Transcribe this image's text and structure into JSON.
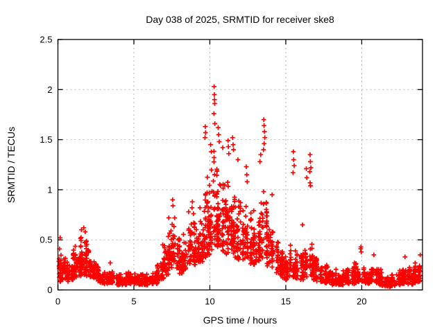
{
  "figure": {
    "background": "#ffffff"
  },
  "chart_data": {
    "type": "scatter",
    "title": "Day 038 of 2025, SRMTID for receiver ske8",
    "xlabel": "GPS time / hours",
    "ylabel": "SRMTID / TECUs",
    "xlim": [
      0,
      24
    ],
    "ylim": [
      0,
      2.5
    ],
    "xticks": [
      0,
      5,
      10,
      15,
      20
    ],
    "yticks": [
      0,
      0.5,
      1,
      1.5,
      2,
      2.5
    ],
    "grid": true,
    "legend": "none",
    "marker": "plus",
    "marker_color": "#ff0000",
    "grid_color": "#b3b3b3",
    "axis_color": "#000000",
    "seed": 20250038,
    "envelope_note": "Dense multi-satellite scatter summarized as [hour_start, hour_end, value_low, value_high, point_count] bands read from the plot",
    "envelope": [
      [
        0.0,
        0.25,
        0.08,
        0.45,
        30
      ],
      [
        0.25,
        0.5,
        0.1,
        0.36,
        26
      ],
      [
        0.5,
        0.75,
        0.08,
        0.32,
        24
      ],
      [
        0.75,
        1.0,
        0.1,
        0.38,
        26
      ],
      [
        1.0,
        1.25,
        0.12,
        0.45,
        30
      ],
      [
        1.25,
        1.5,
        0.14,
        0.52,
        30
      ],
      [
        1.5,
        1.75,
        0.15,
        0.57,
        30
      ],
      [
        1.75,
        2.0,
        0.14,
        0.54,
        28
      ],
      [
        2.0,
        2.25,
        0.13,
        0.42,
        26
      ],
      [
        2.25,
        2.5,
        0.12,
        0.34,
        24
      ],
      [
        2.5,
        2.75,
        0.09,
        0.28,
        24
      ],
      [
        2.75,
        3.0,
        0.07,
        0.22,
        22
      ],
      [
        3.0,
        3.25,
        0.06,
        0.18,
        22
      ],
      [
        3.25,
        3.5,
        0.07,
        0.24,
        22
      ],
      [
        3.5,
        3.75,
        0.07,
        0.22,
        22
      ],
      [
        3.75,
        4.0,
        0.05,
        0.16,
        22
      ],
      [
        4.0,
        4.25,
        0.05,
        0.17,
        22
      ],
      [
        4.25,
        4.5,
        0.05,
        0.17,
        22
      ],
      [
        4.5,
        4.75,
        0.06,
        0.19,
        22
      ],
      [
        4.75,
        5.0,
        0.06,
        0.2,
        22
      ],
      [
        5.0,
        5.25,
        0.06,
        0.2,
        22
      ],
      [
        5.25,
        5.5,
        0.05,
        0.19,
        22
      ],
      [
        5.5,
        5.75,
        0.05,
        0.18,
        22
      ],
      [
        5.75,
        6.0,
        0.05,
        0.18,
        22
      ],
      [
        6.0,
        6.25,
        0.06,
        0.19,
        22
      ],
      [
        6.25,
        6.5,
        0.06,
        0.21,
        22
      ],
      [
        6.5,
        6.75,
        0.07,
        0.26,
        22
      ],
      [
        6.75,
        7.0,
        0.1,
        0.38,
        24
      ],
      [
        7.0,
        7.25,
        0.15,
        0.55,
        26
      ],
      [
        7.25,
        7.5,
        0.22,
        0.68,
        28
      ],
      [
        7.5,
        7.75,
        0.25,
        0.78,
        26
      ],
      [
        7.75,
        8.0,
        0.2,
        0.62,
        24
      ],
      [
        8.0,
        8.25,
        0.16,
        0.5,
        24
      ],
      [
        8.25,
        8.5,
        0.2,
        0.6,
        24
      ],
      [
        8.5,
        8.75,
        0.25,
        0.72,
        26
      ],
      [
        8.75,
        9.0,
        0.28,
        0.8,
        26
      ],
      [
        9.0,
        9.25,
        0.24,
        0.66,
        24
      ],
      [
        9.25,
        9.5,
        0.28,
        0.78,
        26
      ],
      [
        9.5,
        9.75,
        0.32,
        1.05,
        28
      ],
      [
        9.75,
        10.0,
        0.35,
        1.2,
        30
      ],
      [
        10.0,
        10.25,
        0.4,
        1.4,
        32
      ],
      [
        10.25,
        10.5,
        0.42,
        1.5,
        34
      ],
      [
        10.5,
        10.75,
        0.42,
        1.42,
        32
      ],
      [
        10.75,
        11.0,
        0.38,
        1.3,
        30
      ],
      [
        11.0,
        11.25,
        0.35,
        1.22,
        28
      ],
      [
        11.25,
        11.5,
        0.34,
        1.12,
        28
      ],
      [
        11.5,
        11.75,
        0.32,
        1.08,
        28
      ],
      [
        11.75,
        12.0,
        0.3,
        1.0,
        26
      ],
      [
        12.0,
        12.25,
        0.28,
        0.95,
        26
      ],
      [
        12.25,
        12.5,
        0.3,
        1.0,
        26
      ],
      [
        12.5,
        12.75,
        0.26,
        0.88,
        24
      ],
      [
        12.75,
        13.0,
        0.24,
        0.82,
        24
      ],
      [
        13.0,
        13.25,
        0.26,
        0.9,
        24
      ],
      [
        13.25,
        13.5,
        0.3,
        1.05,
        26
      ],
      [
        13.5,
        13.75,
        0.3,
        1.15,
        28
      ],
      [
        13.75,
        14.0,
        0.24,
        0.85,
        24
      ],
      [
        14.0,
        14.25,
        0.2,
        0.68,
        24
      ],
      [
        14.25,
        14.5,
        0.17,
        0.55,
        22
      ],
      [
        14.5,
        14.75,
        0.15,
        0.46,
        22
      ],
      [
        14.75,
        15.0,
        0.12,
        0.4,
        22
      ],
      [
        15.0,
        15.25,
        0.1,
        0.38,
        22
      ],
      [
        15.25,
        15.5,
        0.12,
        0.5,
        24
      ],
      [
        15.5,
        15.75,
        0.12,
        0.48,
        24
      ],
      [
        15.75,
        16.0,
        0.1,
        0.4,
        22
      ],
      [
        16.0,
        16.25,
        0.1,
        0.45,
        22
      ],
      [
        16.25,
        16.5,
        0.12,
        0.48,
        22
      ],
      [
        16.5,
        16.75,
        0.14,
        0.55,
        24
      ],
      [
        16.75,
        17.0,
        0.1,
        0.4,
        22
      ],
      [
        17.0,
        17.25,
        0.08,
        0.34,
        22
      ],
      [
        17.25,
        17.5,
        0.08,
        0.32,
        22
      ],
      [
        17.5,
        17.75,
        0.07,
        0.3,
        22
      ],
      [
        17.75,
        18.0,
        0.07,
        0.28,
        22
      ],
      [
        18.0,
        18.25,
        0.05,
        0.24,
        22
      ],
      [
        18.25,
        18.5,
        0.05,
        0.22,
        22
      ],
      [
        18.5,
        18.75,
        0.05,
        0.22,
        22
      ],
      [
        18.75,
        19.0,
        0.05,
        0.23,
        22
      ],
      [
        19.0,
        19.25,
        0.06,
        0.26,
        22
      ],
      [
        19.25,
        19.5,
        0.06,
        0.28,
        22
      ],
      [
        19.5,
        19.75,
        0.07,
        0.3,
        22
      ],
      [
        19.75,
        20.0,
        0.08,
        0.3,
        22
      ],
      [
        20.0,
        20.25,
        0.06,
        0.27,
        22
      ],
      [
        20.25,
        20.5,
        0.06,
        0.26,
        22
      ],
      [
        20.5,
        20.75,
        0.07,
        0.3,
        22
      ],
      [
        20.75,
        21.0,
        0.07,
        0.32,
        22
      ],
      [
        21.0,
        21.25,
        0.05,
        0.24,
        22
      ],
      [
        21.25,
        21.5,
        0.04,
        0.2,
        22
      ],
      [
        21.5,
        21.75,
        0.03,
        0.17,
        22
      ],
      [
        21.75,
        22.0,
        0.03,
        0.16,
        22
      ],
      [
        22.0,
        22.25,
        0.04,
        0.18,
        22
      ],
      [
        22.25,
        22.5,
        0.05,
        0.22,
        22
      ],
      [
        22.5,
        22.75,
        0.06,
        0.26,
        22
      ],
      [
        22.75,
        23.0,
        0.06,
        0.26,
        22
      ],
      [
        23.0,
        23.25,
        0.05,
        0.24,
        22
      ],
      [
        23.25,
        23.5,
        0.05,
        0.23,
        22
      ],
      [
        23.5,
        23.75,
        0.07,
        0.28,
        22
      ],
      [
        23.75,
        23.95,
        0.08,
        0.32,
        18
      ]
    ],
    "spikes": [
      [
        0.15,
        0.52
      ],
      [
        1.55,
        0.6
      ],
      [
        1.7,
        0.62
      ],
      [
        1.8,
        0.58
      ],
      [
        3.45,
        0.27
      ],
      [
        6.9,
        0.45
      ],
      [
        7.3,
        0.72
      ],
      [
        7.55,
        0.9
      ],
      [
        7.57,
        0.84
      ],
      [
        8.6,
        0.78
      ],
      [
        8.83,
        0.82
      ],
      [
        8.85,
        0.88
      ],
      [
        9.35,
        0.82
      ],
      [
        9.68,
        1.52
      ],
      [
        9.7,
        1.63
      ],
      [
        9.72,
        1.57
      ],
      [
        10.05,
        1.45
      ],
      [
        10.1,
        1.38
      ],
      [
        10.27,
        1.76
      ],
      [
        10.28,
        2.03
      ],
      [
        10.3,
        1.95
      ],
      [
        10.31,
        1.9
      ],
      [
        10.32,
        1.86
      ],
      [
        10.33,
        1.66
      ],
      [
        10.55,
        1.62
      ],
      [
        10.58,
        1.55
      ],
      [
        10.62,
        1.48
      ],
      [
        10.85,
        1.42
      ],
      [
        11.2,
        1.49
      ],
      [
        11.22,
        1.43
      ],
      [
        11.25,
        1.36
      ],
      [
        11.5,
        1.52
      ],
      [
        11.53,
        1.45
      ],
      [
        11.56,
        1.4
      ],
      [
        11.85,
        1.3
      ],
      [
        12.4,
        1.23
      ],
      [
        12.43,
        1.15
      ],
      [
        12.46,
        1.08
      ],
      [
        13.3,
        1.28
      ],
      [
        13.35,
        1.35
      ],
      [
        13.53,
        1.4
      ],
      [
        13.55,
        1.7
      ],
      [
        13.57,
        1.64
      ],
      [
        13.58,
        1.46
      ],
      [
        13.6,
        1.58
      ],
      [
        13.62,
        1.52
      ],
      [
        14.1,
        0.95
      ],
      [
        15.48,
        1.17
      ],
      [
        15.5,
        1.38
      ],
      [
        15.52,
        1.3
      ],
      [
        15.55,
        1.24
      ],
      [
        16.1,
        0.65
      ],
      [
        16.35,
        1.21
      ],
      [
        16.38,
        1.12
      ],
      [
        16.58,
        1.18
      ],
      [
        16.6,
        1.35
      ],
      [
        16.6,
        1.07
      ],
      [
        16.62,
        1.28
      ],
      [
        16.63,
        1.04
      ],
      [
        16.65,
        1.22
      ],
      [
        19.93,
        0.41
      ],
      [
        19.95,
        0.43
      ],
      [
        19.97,
        0.38
      ],
      [
        20.8,
        0.35
      ],
      [
        22.85,
        0.33
      ],
      [
        23.85,
        0.35
      ]
    ]
  }
}
